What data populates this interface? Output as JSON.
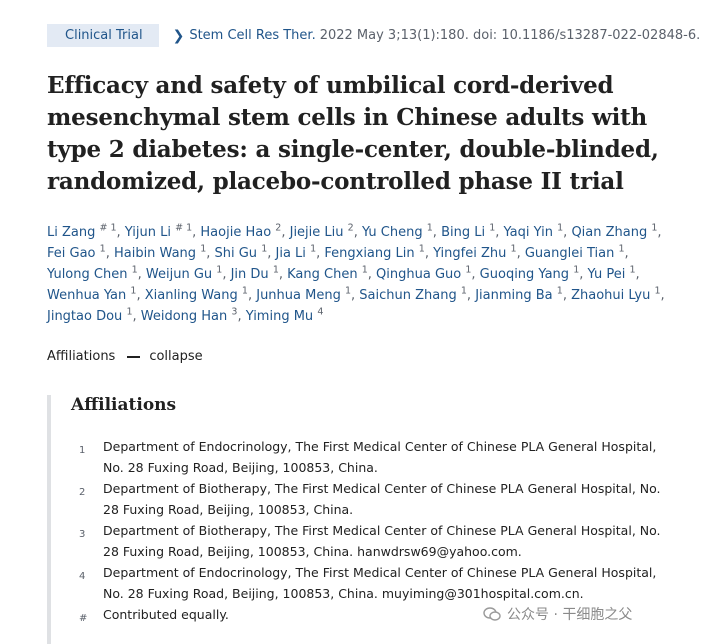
{
  "header": {
    "badge": "Clinical Trial",
    "journal": "Stem Cell Res Ther.",
    "citation": "2022 May 3;13(1):180. doi: 10.1186/s13287-022-02848-6."
  },
  "title": "Efficacy and safety of umbilical cord-derived mesenchymal stem cells in Chinese adults with type 2 diabetes: a single-center, double-blinded, randomized, placebo-controlled phase II trial",
  "authors": [
    {
      "name": "Li Zang",
      "sup": "# 1"
    },
    {
      "name": "Yijun Li",
      "sup": "# 1"
    },
    {
      "name": "Haojie Hao",
      "sup": "2"
    },
    {
      "name": "Jiejie Liu",
      "sup": "2"
    },
    {
      "name": "Yu Cheng",
      "sup": "1"
    },
    {
      "name": "Bing Li",
      "sup": "1"
    },
    {
      "name": "Yaqi Yin",
      "sup": "1"
    },
    {
      "name": "Qian Zhang",
      "sup": "1"
    },
    {
      "name": "Fei Gao",
      "sup": "1"
    },
    {
      "name": "Haibin Wang",
      "sup": "1"
    },
    {
      "name": "Shi Gu",
      "sup": "1"
    },
    {
      "name": "Jia Li",
      "sup": "1"
    },
    {
      "name": "Fengxiang Lin",
      "sup": "1"
    },
    {
      "name": "Yingfei Zhu",
      "sup": "1"
    },
    {
      "name": "Guanglei Tian",
      "sup": "1"
    },
    {
      "name": "Yulong Chen",
      "sup": "1"
    },
    {
      "name": "Weijun Gu",
      "sup": "1"
    },
    {
      "name": "Jin Du",
      "sup": "1"
    },
    {
      "name": "Kang Chen",
      "sup": "1"
    },
    {
      "name": "Qinghua Guo",
      "sup": "1"
    },
    {
      "name": "Guoqing Yang",
      "sup": "1"
    },
    {
      "name": "Yu Pei",
      "sup": "1"
    },
    {
      "name": "Wenhua Yan",
      "sup": "1"
    },
    {
      "name": "Xianling Wang",
      "sup": "1"
    },
    {
      "name": "Junhua Meng",
      "sup": "1"
    },
    {
      "name": "Saichun Zhang",
      "sup": "1"
    },
    {
      "name": "Jianming Ba",
      "sup": "1"
    },
    {
      "name": "Zhaohui Lyu",
      "sup": "1"
    },
    {
      "name": "Jingtao Dou",
      "sup": "1"
    },
    {
      "name": "Weidong Han",
      "sup": "3"
    },
    {
      "name": "Yiming Mu",
      "sup": "4"
    }
  ],
  "affiliations_toggle": {
    "label": "Affiliations",
    "action": "collapse"
  },
  "affiliations": {
    "heading": "Affiliations",
    "items": [
      {
        "num": "1",
        "text": "Department of Endocrinology, The First Medical Center of Chinese PLA General Hospital, No. 28 Fuxing Road, Beijing, 100853, China."
      },
      {
        "num": "2",
        "text": "Department of Biotherapy, The First Medical Center of Chinese PLA General Hospital, No. 28 Fuxing Road, Beijing, 100853, China."
      },
      {
        "num": "3",
        "text": "Department of Biotherapy, The First Medical Center of Chinese PLA General Hospital, No. 28 Fuxing Road, Beijing, 100853, China. hanwdrsw69@yahoo.com."
      },
      {
        "num": "4",
        "text": "Department of Endocrinology, The First Medical Center of Chinese PLA General Hospital, No. 28 Fuxing Road, Beijing, 100853, China. muyiming@301hospital.com.cn."
      },
      {
        "num": "#",
        "text": "Contributed equally."
      }
    ]
  },
  "watermark": "公众号 · 干细胞之父",
  "colors": {
    "link": "#20558a",
    "badge_bg": "#e3eaf4",
    "text": "#212121",
    "muted": "#5b616b"
  }
}
